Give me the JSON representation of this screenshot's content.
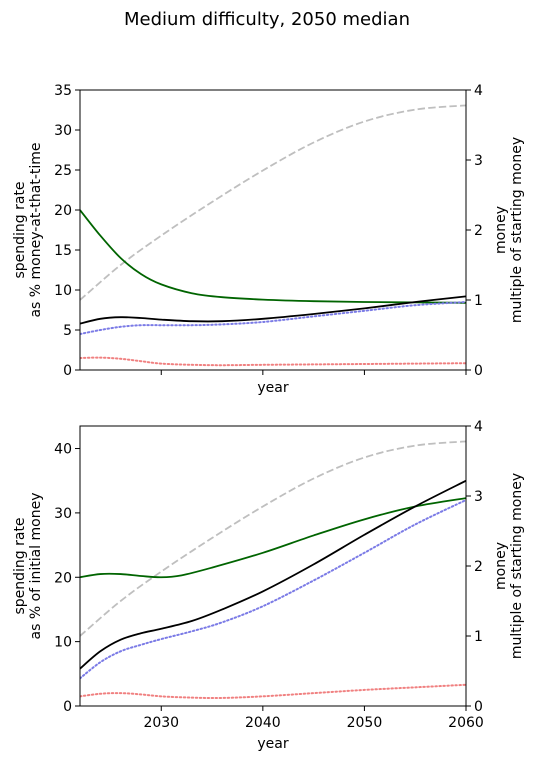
{
  "suptitle": "Medium difficulty, 2050 median",
  "colors": {
    "money": "#bfbfbf",
    "green": "#006400",
    "black": "#000000",
    "blue_dotted": "#7b7be6",
    "red_dotted": "#f08080"
  },
  "chart_data": [
    {
      "type": "line",
      "title": "",
      "xlabel": "year",
      "ylabel_lines": [
        "spending rate",
        "as % money-at-that-time"
      ],
      "y2label_lines": [
        "money",
        "multiple of starting money"
      ],
      "xlim": [
        2022,
        2060
      ],
      "ylim": [
        0,
        35
      ],
      "y2lim": [
        0,
        4
      ],
      "xticks": [
        2030,
        2040,
        2050,
        2060
      ],
      "xtick_labels_visible": false,
      "yticks": [
        0,
        5,
        10,
        15,
        20,
        25,
        30,
        35
      ],
      "y2ticks": [
        0,
        1,
        2,
        3,
        4
      ],
      "grid": false,
      "series": [
        {
          "style": "money",
          "axis": "right",
          "dash": "dashed",
          "x": [
            2022,
            2026,
            2030,
            2035,
            2040,
            2045,
            2050,
            2055,
            2060
          ],
          "y": [
            1.0,
            1.5,
            1.92,
            2.4,
            2.85,
            3.25,
            3.55,
            3.72,
            3.78
          ]
        },
        {
          "style": "green",
          "axis": "left",
          "dash": "solid",
          "x": [
            2022,
            2024,
            2026,
            2028,
            2030,
            2033,
            2036,
            2040,
            2045,
            2050,
            2055,
            2060
          ],
          "y": [
            20,
            16.8,
            14.0,
            12.0,
            10.7,
            9.6,
            9.1,
            8.8,
            8.6,
            8.5,
            8.45,
            8.4
          ]
        },
        {
          "style": "black",
          "axis": "left",
          "dash": "solid",
          "x": [
            2022,
            2024,
            2026,
            2028,
            2030,
            2033,
            2036,
            2040,
            2045,
            2050,
            2055,
            2060
          ],
          "y": [
            5.8,
            6.4,
            6.6,
            6.5,
            6.3,
            6.1,
            6.1,
            6.4,
            7.0,
            7.7,
            8.5,
            9.2
          ]
        },
        {
          "style": "blue_dotted",
          "axis": "left",
          "dash": "dotted",
          "x": [
            2022,
            2024,
            2026,
            2028,
            2030,
            2033,
            2036,
            2040,
            2045,
            2050,
            2055,
            2060
          ],
          "y": [
            4.5,
            5.0,
            5.4,
            5.6,
            5.6,
            5.6,
            5.7,
            6.0,
            6.7,
            7.4,
            8.1,
            8.5
          ]
        },
        {
          "style": "red_dotted",
          "axis": "left",
          "dash": "dotted",
          "x": [
            2022,
            2024,
            2026,
            2028,
            2030,
            2033,
            2036,
            2040,
            2045,
            2050,
            2055,
            2060
          ],
          "y": [
            1.5,
            1.55,
            1.4,
            1.1,
            0.8,
            0.65,
            0.6,
            0.65,
            0.7,
            0.75,
            0.8,
            0.85
          ]
        }
      ]
    },
    {
      "type": "line",
      "title": "",
      "xlabel": "year",
      "ylabel_lines": [
        "spending rate",
        "as % of initial money"
      ],
      "y2label_lines": [
        "money",
        "multiple of starting money"
      ],
      "xlim": [
        2022,
        2060
      ],
      "ylim": [
        0,
        43.5
      ],
      "y2lim": [
        0,
        4
      ],
      "xticks": [
        2030,
        2040,
        2050,
        2060
      ],
      "xtick_labels": [
        "2030",
        "2040",
        "2050",
        "2060"
      ],
      "xtick_labels_visible": true,
      "yticks": [
        0,
        10,
        20,
        30,
        40
      ],
      "y2ticks": [
        0,
        1,
        2,
        3,
        4
      ],
      "grid": false,
      "series": [
        {
          "style": "money",
          "axis": "right",
          "dash": "dashed",
          "x": [
            2022,
            2026,
            2030,
            2035,
            2040,
            2045,
            2050,
            2055,
            2060
          ],
          "y": [
            1.0,
            1.5,
            1.92,
            2.4,
            2.85,
            3.25,
            3.55,
            3.72,
            3.78
          ]
        },
        {
          "style": "green",
          "axis": "left",
          "dash": "solid",
          "x": [
            2022,
            2024,
            2026,
            2028,
            2030,
            2032,
            2035,
            2040,
            2045,
            2050,
            2055,
            2060
          ],
          "y": [
            20,
            20.5,
            20.5,
            20.2,
            20.0,
            20.3,
            21.5,
            23.8,
            26.5,
            29.0,
            31.0,
            32.3
          ]
        },
        {
          "style": "black",
          "axis": "left",
          "dash": "solid",
          "x": [
            2022,
            2024,
            2026,
            2028,
            2030,
            2033,
            2036,
            2040,
            2045,
            2050,
            2055,
            2060
          ],
          "y": [
            5.8,
            8.5,
            10.3,
            11.3,
            12.0,
            13.2,
            15.0,
            17.8,
            22.0,
            26.6,
            31.0,
            35.0
          ]
        },
        {
          "style": "blue_dotted",
          "axis": "left",
          "dash": "dotted",
          "x": [
            2022,
            2024,
            2026,
            2028,
            2030,
            2033,
            2036,
            2040,
            2045,
            2050,
            2055,
            2060
          ],
          "y": [
            4.3,
            6.8,
            8.5,
            9.5,
            10.4,
            11.6,
            13.0,
            15.5,
            19.5,
            23.8,
            28.2,
            32.0
          ]
        },
        {
          "style": "red_dotted",
          "axis": "left",
          "dash": "dotted",
          "x": [
            2022,
            2024,
            2026,
            2028,
            2030,
            2033,
            2036,
            2040,
            2045,
            2050,
            2055,
            2060
          ],
          "y": [
            1.5,
            1.9,
            2.0,
            1.8,
            1.5,
            1.3,
            1.25,
            1.5,
            2.0,
            2.5,
            2.9,
            3.3
          ]
        }
      ]
    }
  ]
}
